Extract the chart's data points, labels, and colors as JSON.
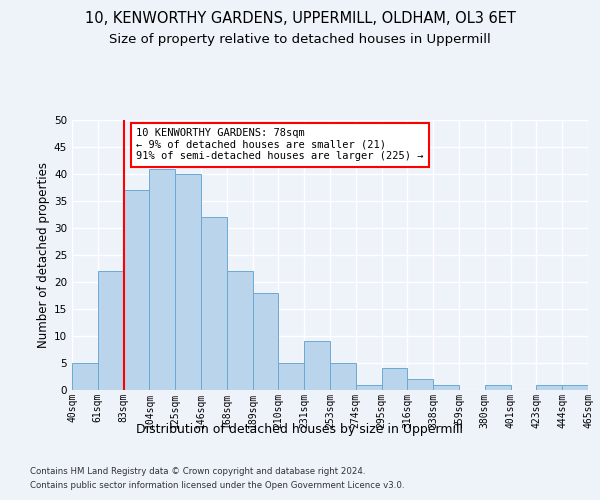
{
  "title1": "10, KENWORTHY GARDENS, UPPERMILL, OLDHAM, OL3 6ET",
  "title2": "Size of property relative to detached houses in Uppermill",
  "xlabel": "Distribution of detached houses by size in Uppermill",
  "ylabel": "Number of detached properties",
  "bar_values": [
    5,
    22,
    37,
    41,
    40,
    32,
    22,
    18,
    5,
    9,
    5,
    1,
    4,
    2,
    1,
    0,
    1,
    0,
    1,
    1
  ],
  "categories": [
    "40sqm",
    "61sqm",
    "83sqm",
    "104sqm",
    "125sqm",
    "146sqm",
    "168sqm",
    "189sqm",
    "210sqm",
    "231sqm",
    "253sqm",
    "274sqm",
    "295sqm",
    "316sqm",
    "338sqm",
    "359sqm",
    "380sqm",
    "401sqm",
    "423sqm",
    "444sqm",
    "465sqm"
  ],
  "bar_color": "#bad4eb",
  "bar_edge_color": "#6aaad4",
  "annotation_text": "10 KENWORTHY GARDENS: 78sqm\n← 9% of detached houses are smaller (21)\n91% of semi-detached houses are larger (225) →",
  "footer1": "Contains HM Land Registry data © Crown copyright and database right 2024.",
  "footer2": "Contains public sector information licensed under the Open Government Licence v3.0.",
  "ylim": [
    0,
    50
  ],
  "yticks": [
    0,
    5,
    10,
    15,
    20,
    25,
    30,
    35,
    40,
    45,
    50
  ],
  "bg_color": "#eef2f9",
  "plot_bg_color": "#eef2f9",
  "grid_color": "#ffffff",
  "title1_fontsize": 10.5,
  "title2_fontsize": 9.5,
  "tick_fontsize": 7,
  "ylabel_fontsize": 8.5,
  "xlabel_fontsize": 9,
  "footer_fontsize": 6.2
}
